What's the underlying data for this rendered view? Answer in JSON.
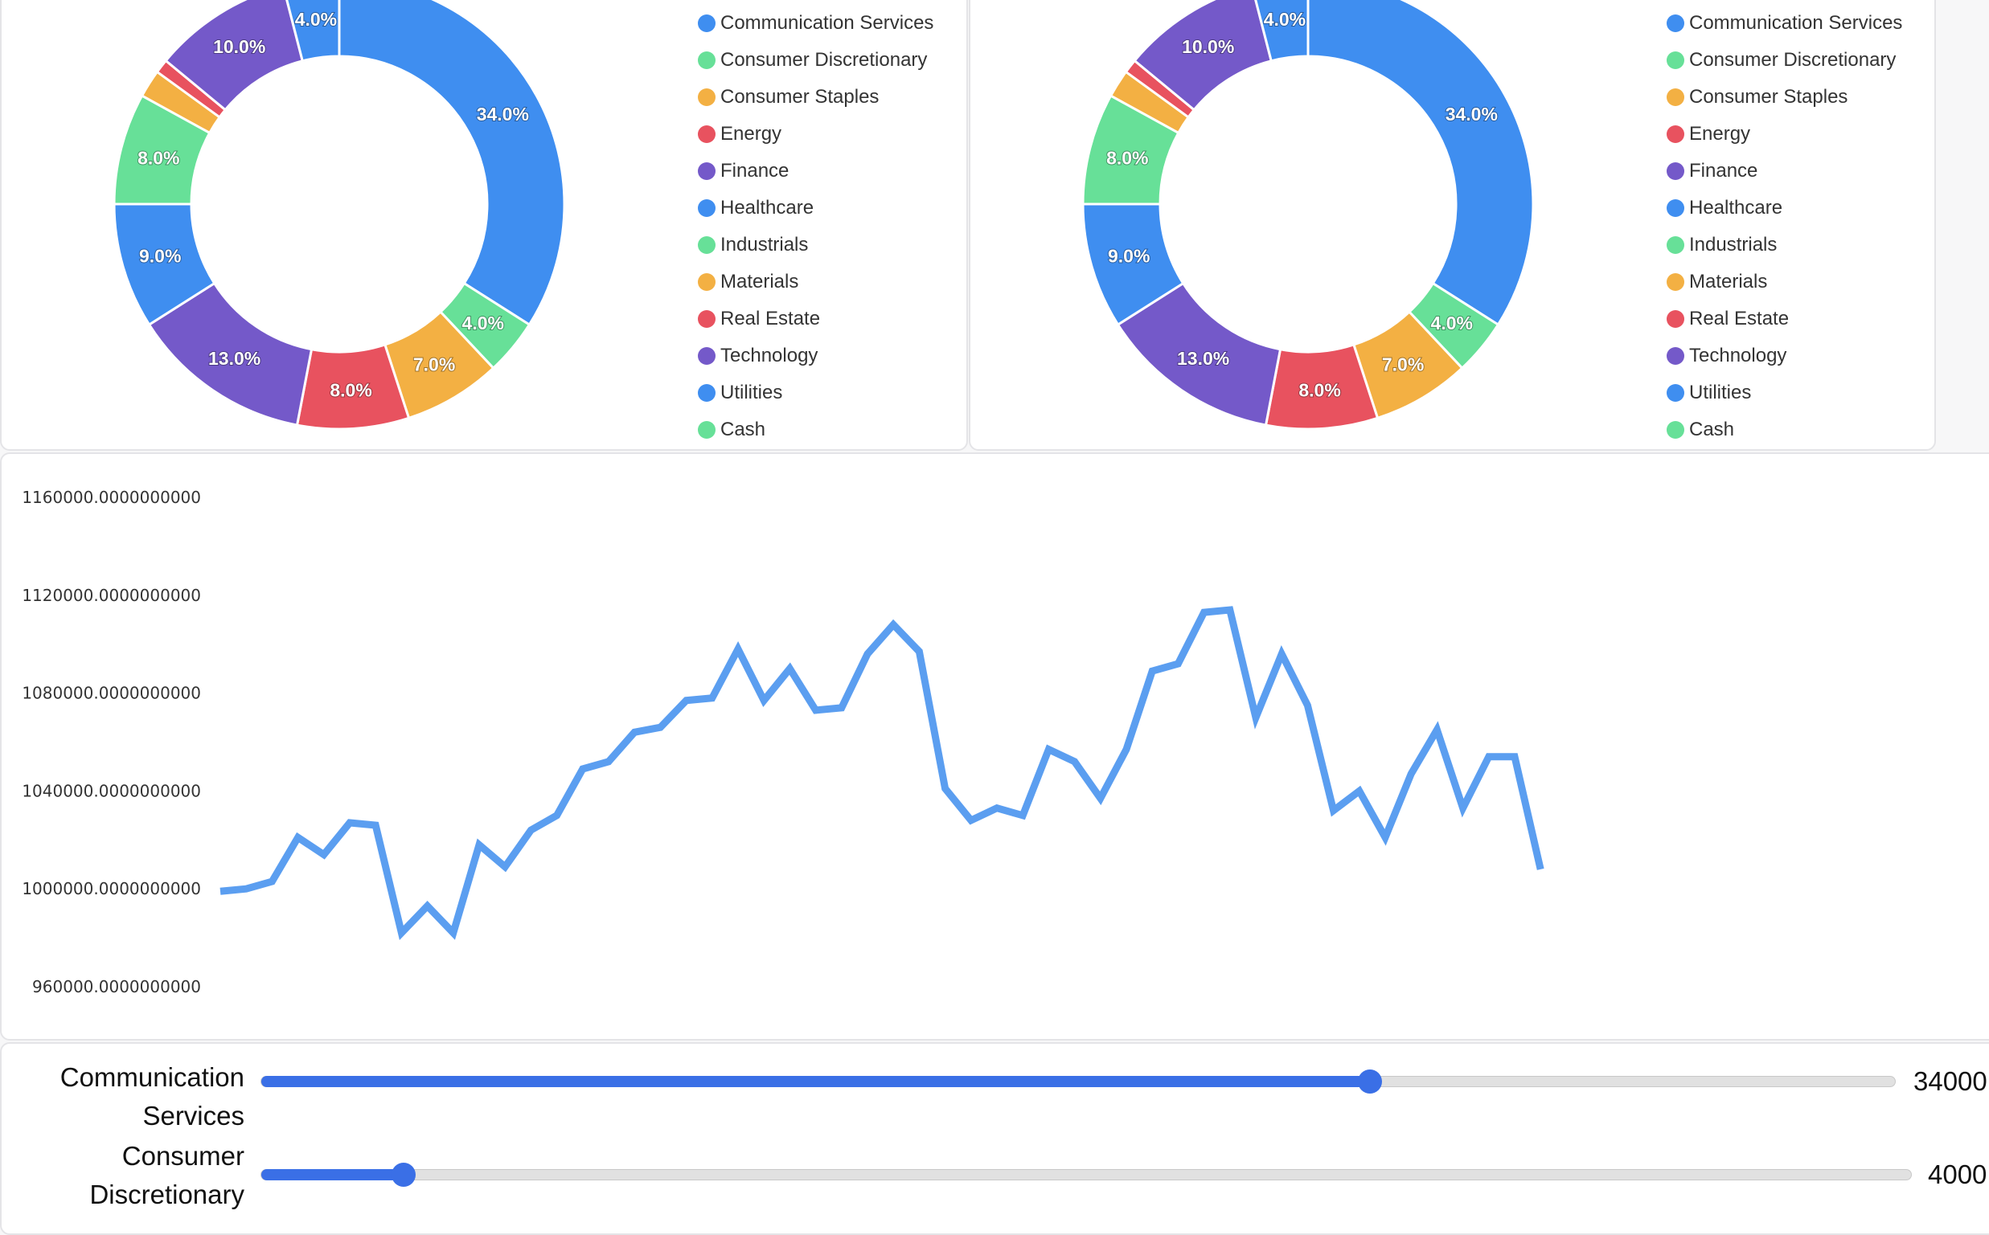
{
  "colors": {
    "blue": "#3f8ef0",
    "green": "#67e098",
    "orange": "#f3b043",
    "red": "#e8525f",
    "purple": "#7459c9",
    "slider": "#3a6fe6",
    "line": "#5b9ef0"
  },
  "legend": [
    {
      "label": "Communication Services",
      "color": "#3f8ef0"
    },
    {
      "label": "Consumer Discretionary",
      "color": "#67e098"
    },
    {
      "label": "Consumer Staples",
      "color": "#f3b043"
    },
    {
      "label": "Energy",
      "color": "#e8525f"
    },
    {
      "label": "Finance",
      "color": "#7459c9"
    },
    {
      "label": "Healthcare",
      "color": "#3f8ef0"
    },
    {
      "label": "Industrials",
      "color": "#67e098"
    },
    {
      "label": "Materials",
      "color": "#f3b043"
    },
    {
      "label": "Real Estate",
      "color": "#e8525f"
    },
    {
      "label": "Technology",
      "color": "#7459c9"
    },
    {
      "label": "Utilities",
      "color": "#3f8ef0"
    },
    {
      "label": "Cash",
      "color": "#67e098"
    }
  ],
  "chart_data": [
    {
      "type": "pie",
      "variant": "donut",
      "categories": [
        "Communication Services",
        "Consumer Discretionary",
        "Consumer Staples",
        "Energy",
        "Finance",
        "Healthcare",
        "Industrials",
        "Materials",
        "Real Estate",
        "Technology",
        "Utilities",
        "Cash"
      ],
      "values": [
        34.0,
        4.0,
        7.0,
        8.0,
        13.0,
        9.0,
        8.0,
        2.0,
        1.0,
        10.0,
        4.0,
        0.0
      ],
      "labels": [
        "34.0%",
        "4.0%",
        "7.0%",
        "8.0%",
        "13.0%",
        "9.0%",
        "8.0%",
        "",
        "",
        "10.0%",
        "4.0%",
        ""
      ],
      "legend_position": "right"
    },
    {
      "type": "pie",
      "variant": "donut",
      "categories": [
        "Communication Services",
        "Consumer Discretionary",
        "Consumer Staples",
        "Energy",
        "Finance",
        "Healthcare",
        "Industrials",
        "Materials",
        "Real Estate",
        "Technology",
        "Utilities",
        "Cash"
      ],
      "values": [
        34.0,
        4.0,
        7.0,
        8.0,
        13.0,
        9.0,
        8.0,
        2.0,
        1.0,
        10.0,
        4.0,
        0.0
      ],
      "labels": [
        "34.0%",
        "4.0%",
        "7.0%",
        "8.0%",
        "13.0%",
        "9.0%",
        "8.0%",
        "",
        "",
        "10.0%",
        "4.0%",
        ""
      ],
      "legend_position": "right"
    },
    {
      "type": "line",
      "y_ticks": [
        "1160000.0000000000",
        "1120000.0000000000",
        "1080000.0000000000",
        "1040000.0000000000",
        "1000000.0000000000",
        "960000.0000000000"
      ],
      "ylim": [
        960000,
        1160000
      ],
      "grid": false,
      "x": [
        0,
        1,
        2,
        3,
        4,
        5,
        6,
        7,
        8,
        9,
        10,
        11,
        12,
        13,
        14,
        15,
        16,
        17,
        18,
        19,
        20,
        21,
        22,
        23,
        24,
        25,
        26,
        27,
        28,
        29,
        30,
        31,
        32,
        33,
        34,
        35,
        36,
        37,
        38,
        39,
        40,
        41,
        42,
        43,
        44,
        45,
        46,
        47,
        48,
        49,
        50,
        51
      ],
      "series": [
        {
          "values": [
            999000,
            1000000,
            1003000,
            1021000,
            1014000,
            1027000,
            1026000,
            982000,
            993000,
            982000,
            1018000,
            1009000,
            1024000,
            1030000,
            1049000,
            1052000,
            1064000,
            1066000,
            1077000,
            1078000,
            1098000,
            1077000,
            1090000,
            1073000,
            1074000,
            1096000,
            1108000,
            1097000,
            1041000,
            1028000,
            1033000,
            1030000,
            1057000,
            1052000,
            1037000,
            1057000,
            1089000,
            1092000,
            1113000,
            1114000,
            1070000,
            1096000,
            1075000,
            1032000,
            1040000,
            1021000,
            1047000,
            1065000,
            1033000,
            1054000,
            1054000,
            1008000
          ]
        }
      ]
    }
  ],
  "sliders": [
    {
      "label": "Communication Services",
      "value": "34000",
      "fraction": 0.678
    },
    {
      "label": "Consumer Discretionary",
      "value": "4000",
      "fraction": 0.086
    }
  ]
}
